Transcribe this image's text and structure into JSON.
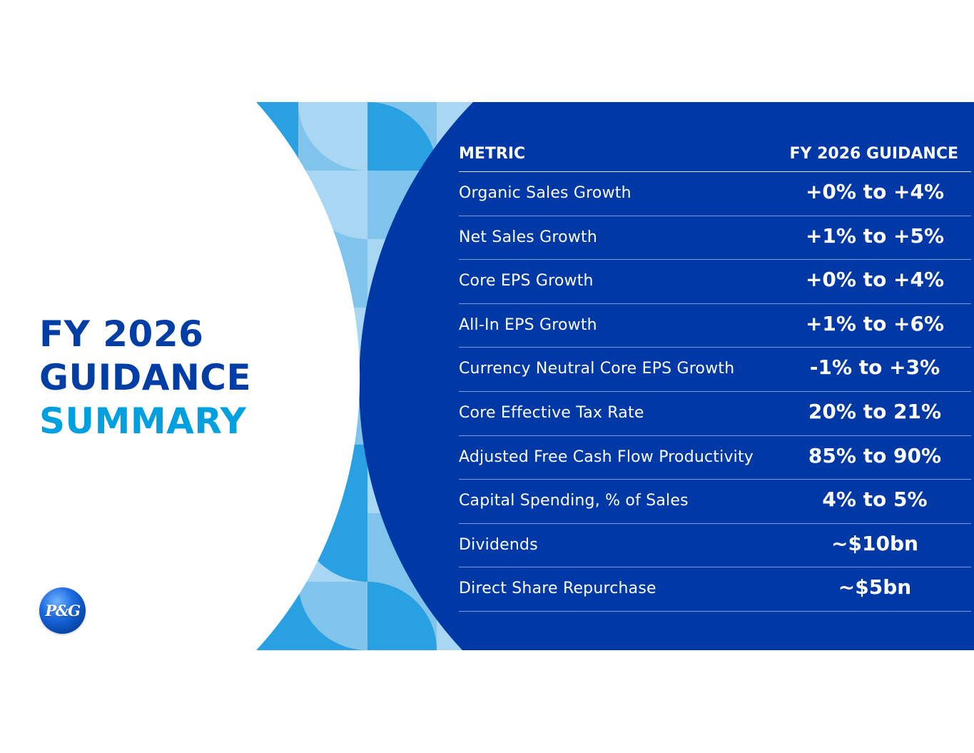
{
  "title": {
    "line1": "FY 2026",
    "line2": "GUIDANCE",
    "line3": "SUMMARY"
  },
  "logo": {
    "text": "P&G",
    "icon": "pg-logo-icon"
  },
  "table": {
    "header_metric": "METRIC",
    "header_guidance": "FY 2026 GUIDANCE",
    "rows": [
      {
        "metric": "Organic Sales Growth",
        "value": "+0% to +4%"
      },
      {
        "metric": "Net Sales Growth",
        "value": "+1% to +5%"
      },
      {
        "metric": "Core EPS Growth",
        "value": "+0% to +4%"
      },
      {
        "metric": "All-In EPS Growth",
        "value": "+1% to +6%"
      },
      {
        "metric": "Currency Neutral Core EPS Growth",
        "value": "-1% to +3%"
      },
      {
        "metric": "Core Effective Tax Rate",
        "value": "20% to 21%"
      },
      {
        "metric": "Adjusted Free Cash Flow Productivity",
        "value": "85% to 90%"
      },
      {
        "metric": "Capital Spending, % of Sales",
        "value": "4% to 5%"
      },
      {
        "metric": "Dividends",
        "value": "~$10bn"
      },
      {
        "metric": "Direct Share Repurchase",
        "value": "~$5bn"
      }
    ]
  },
  "colors": {
    "navy": "#0039a6",
    "title_blue": "#003da5",
    "summary_blue": "#00a0e0",
    "tile_light": "#a9d6f3",
    "tile_mid": "#80c3ec",
    "tile_dark": "#28a0e2",
    "logo_blue": "#0a4fb8"
  }
}
